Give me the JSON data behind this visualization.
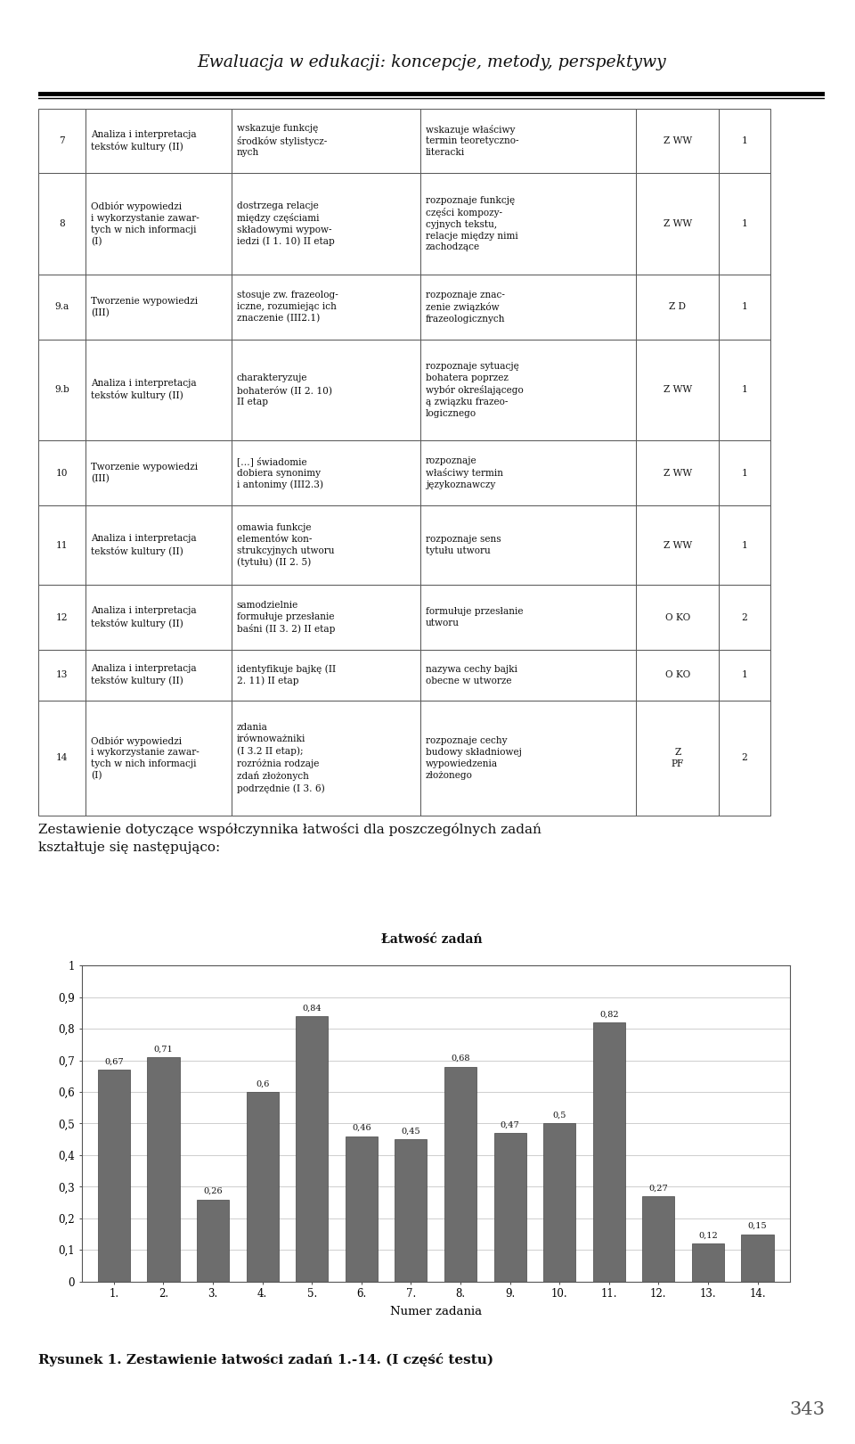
{
  "page_title": "Ewaluacja w edukacji: koncepcje, metody, perspektywy",
  "table_data": [
    [
      "7",
      "Analiza i interpretacja\ntekstów kultury (II)",
      "wskazuje funkcję\nśrodków stylistycz-\nnych",
      "wskazuje właściwy\ntermin teoretyczno-\nliteracki",
      "Z WW",
      "1"
    ],
    [
      "8",
      "Odbiór wypowiedzi\ni wykorzystanie zawar-\ntych w nich informacji\n(I)",
      "dostrzega relacje\nmiędzy częściami\nskładowymi wypow-\niedzi (I 1. 10) II etap",
      "rozpoznaje funkcję\nczęści kompozy-\ncyjnych tekstu,\nrelacje między nimi\nzachodzące",
      "Z WW",
      "1"
    ],
    [
      "9.a",
      "Tworzenie wypowiedzi\n(III)",
      "stosuje zw. frazeolog-\niczne, rozumiejąc ich\nznaczenie (III2.1)",
      "rozpoznaje znac-\nzenie związków\nfrazeologicznych",
      "Z D",
      "1"
    ],
    [
      "9.b",
      "Analiza i interpretacja\ntekstów kultury (II)",
      "charakteryzuje\nbohaterów (II 2. 10)\nII etap",
      "rozpoznaje sytuację\nbohatera poprzez\nwybór określającego\ną związku frazeo-\nlogicznego",
      "Z WW",
      "1"
    ],
    [
      "10",
      "Tworzenie wypowiedzi\n(III)",
      "[…] świadomie\ndobiera synonimy\ni antonimy (III2.3)",
      "rozpoznaje\nwłaściwy termin\njęzykoznawczy",
      "Z WW",
      "1"
    ],
    [
      "11",
      "Analiza i interpretacja\ntekstów kultury (II)",
      "omawia funkcje\nelementów kon-\nstrukcyjnych utworu\n(tytułu) (II 2. 5)",
      "rozpoznaje sens\ntytułu utworu",
      "Z WW",
      "1"
    ],
    [
      "12",
      "Analiza i interpretacja\ntekstów kultury (II)",
      "samodzielnie\nformułuje przesłanie\nbaśni (II 3. 2) II etap",
      "formułuje przesłanie\nutworu",
      "O KO",
      "2"
    ],
    [
      "13",
      "Analiza i interpretacja\ntekstów kultury (II)",
      "identyfikuje bajkę (II\n2. 11) II etap",
      "nazywa cechy bajki\nobecne w utworze",
      "O KO",
      "1"
    ],
    [
      "14",
      "Odbiór wypowiedzi\ni wykorzystanie zawar-\ntych w nich informacji\n(I)",
      "zdania\nirównoważniki\n(I 3.2 II etap);\nrozróżnia rodzaje\nzdań złożonych\npodrzędnie (I 3. 6)",
      "rozpoznaje cechy\nbudowy składniowej\nwypowiedzenia\nzłożonego",
      "Z\nPF",
      "2"
    ]
  ],
  "bar_values": [
    0.67,
    0.71,
    0.26,
    0.6,
    0.84,
    0.46,
    0.45,
    0.68,
    0.47,
    0.5,
    0.82,
    0.27,
    0.12,
    0.15
  ],
  "bar_labels": [
    "1.",
    "2.",
    "3.",
    "4.",
    "5.",
    "6.",
    "7.",
    "8.",
    "9.",
    "10.",
    "11.",
    "12.",
    "13.",
    "14."
  ],
  "bar_color": "#6d6d6d",
  "chart_title": "Łatwość zadań",
  "xlabel": "Numer zadania",
  "ylim": [
    0,
    1
  ],
  "yticks": [
    0,
    0.1,
    0.2,
    0.3,
    0.4,
    0.5,
    0.6,
    0.7,
    0.8,
    0.9,
    1
  ],
  "ytick_labels": [
    "0",
    "0,1",
    "0,2",
    "0,3",
    "0,4",
    "0,5",
    "0,6",
    "0,7",
    "0,8",
    "0,9",
    "1"
  ],
  "paragraph_line1": "Zestawienie dotyczące współczynnika łatwości dla poszczególnych zadań",
  "paragraph_line2": "kształtuje się następująco:",
  "caption": "Rysunek 1. Zestawienie łatwości zadań 1.-14. (I część testu)",
  "page_number": "343",
  "background_color": "#ffffff",
  "col_widths": [
    0.06,
    0.185,
    0.24,
    0.275,
    0.105,
    0.065
  ],
  "row_heights_raw": [
    1.8,
    2.8,
    1.8,
    2.8,
    1.8,
    2.2,
    1.8,
    1.4,
    3.2
  ]
}
